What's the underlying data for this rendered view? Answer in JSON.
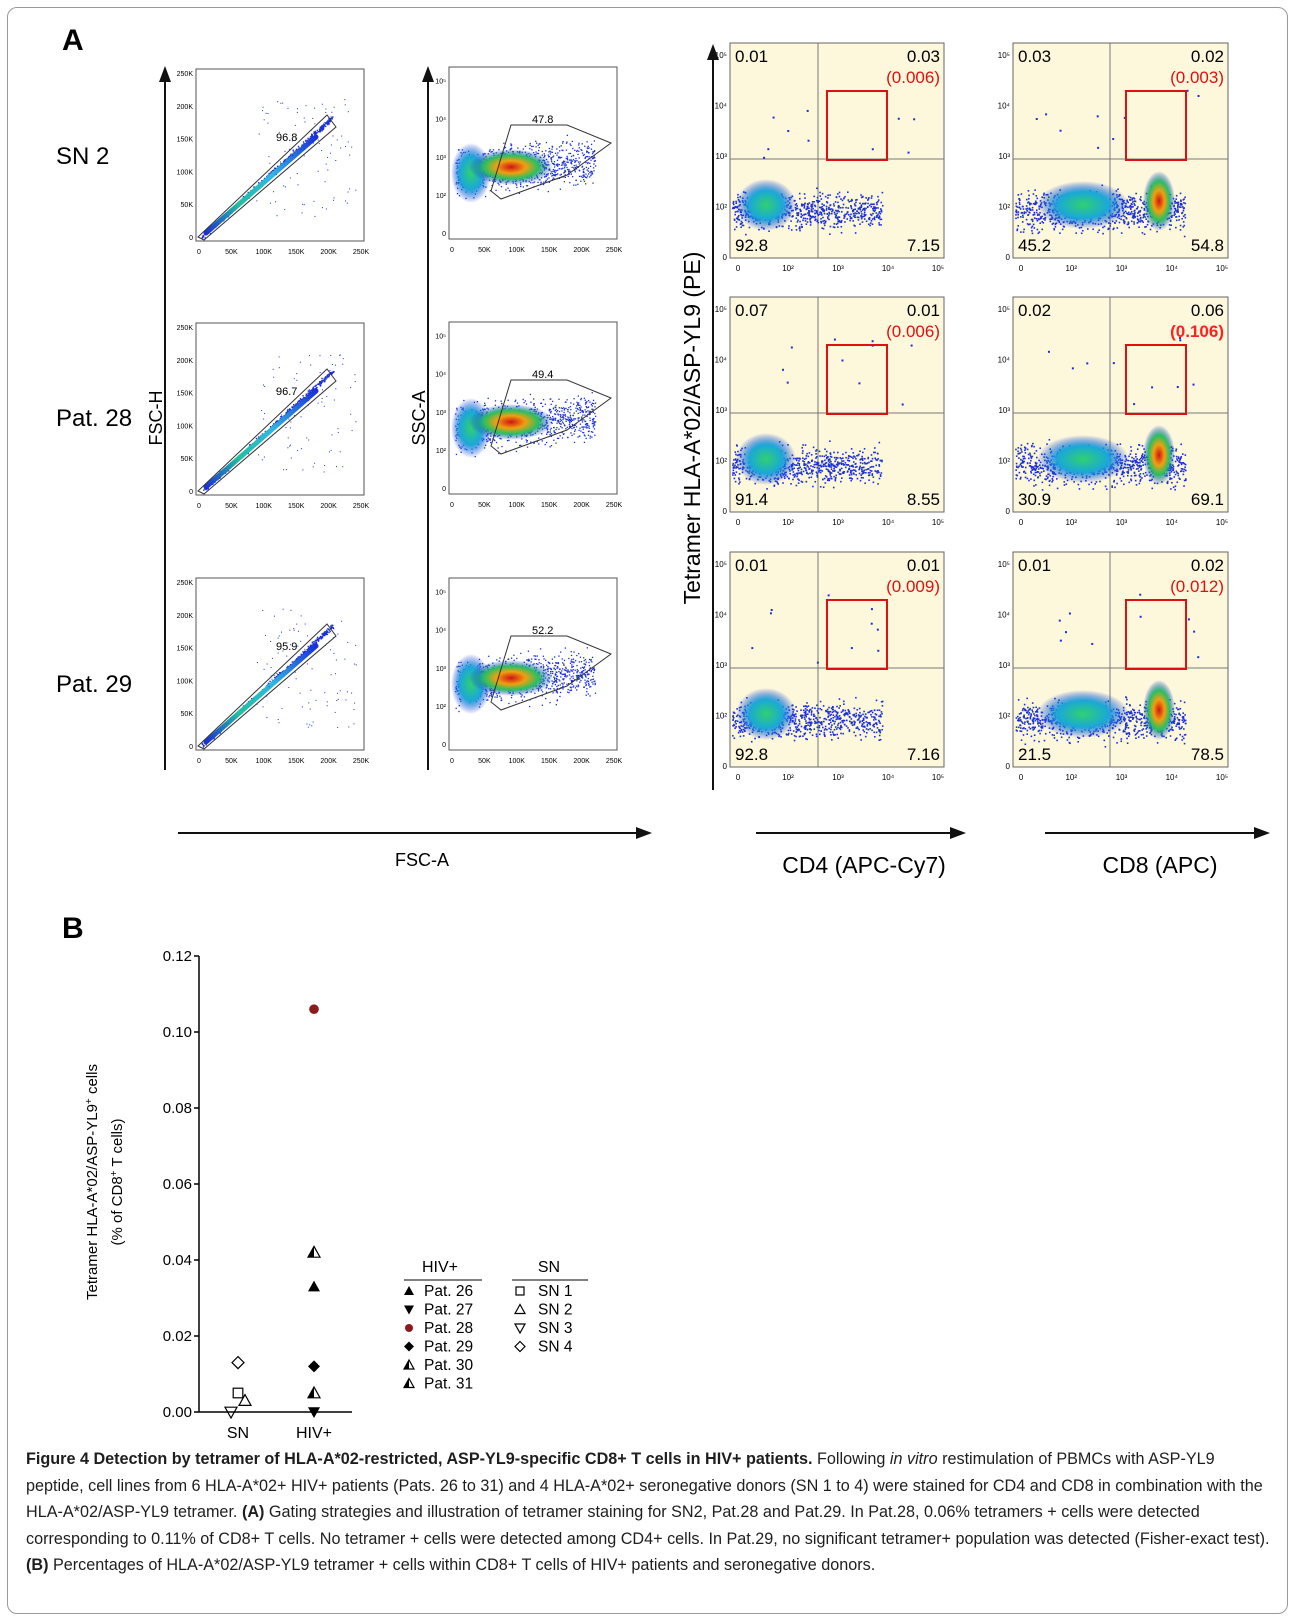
{
  "panel_a": {
    "label": "A",
    "row_labels": [
      "SN 2",
      "Pat. 28",
      "Pat. 29"
    ],
    "fsc_plot": {
      "ylabel": "FSC-H",
      "xlabel": "FSC-A",
      "x_ticks": [
        "0",
        "50K",
        "100K",
        "150K",
        "200K",
        "250K"
      ],
      "y_ticks": [
        "0",
        "50K",
        "100K",
        "150K",
        "200K",
        "250K"
      ],
      "gate_percent": [
        "96.8",
        "96.7",
        "95.9"
      ]
    },
    "ssc_plot": {
      "ylabel": "SSC-A",
      "x_ticks": [
        "0",
        "50K",
        "100K",
        "150K",
        "200K",
        "250K"
      ],
      "gate_percent": [
        "47.8",
        "49.4",
        "52.2"
      ]
    },
    "tetramer": {
      "ylabel": "Tetramer HLA-A*02/ASP-YL9 (PE)",
      "cd4_xlabel": "CD4 (APC-Cy7)",
      "cd8_xlabel": "CD8 (APC)",
      "cd4": [
        {
          "ul": "0.01",
          "ur": "0.03",
          "gate": "(0.006)",
          "ll": "92.8",
          "lr": "7.15"
        },
        {
          "ul": "0.07",
          "ur": "0.01",
          "gate": "(0.006)",
          "ll": "91.4",
          "lr": "8.55"
        },
        {
          "ul": "0.01",
          "ur": "0.01",
          "gate": "(0.009)",
          "ll": "92.8",
          "lr": "7.16"
        }
      ],
      "cd8": [
        {
          "ul": "0.03",
          "ur": "0.02",
          "gate": "(0.003)",
          "ll": "45.2",
          "lr": "54.8"
        },
        {
          "ul": "0.02",
          "ur": "0.06",
          "gate": "(0.106)",
          "ll": "30.9",
          "lr": "69.1"
        },
        {
          "ul": "0.01",
          "ur": "0.02",
          "gate": "(0.012)",
          "ll": "21.5",
          "lr": "78.5"
        }
      ]
    }
  },
  "panel_b": {
    "label": "B",
    "chart_data": {
      "type": "scatter",
      "categories": [
        "SN",
        "HIV+"
      ],
      "ylabel_line1": "Tetramer HLA-A*02/ASP-YL9",
      "ylabel_sup1": "+",
      "ylabel_tail1": " cells",
      "ylabel_line2": "(% of CD8",
      "ylabel_sup2": "+",
      "ylabel_tail2": " T cells)",
      "ylim": [
        0,
        0.12
      ],
      "y_ticks": [
        "0.00",
        "0.02",
        "0.04",
        "0.06",
        "0.08",
        "0.10",
        "0.12"
      ],
      "series": [
        {
          "name": "Pat. 26",
          "group": "HIV+",
          "marker": "triangle-up-filled",
          "value": 0.033,
          "color": "#000000"
        },
        {
          "name": "Pat. 27",
          "group": "HIV+",
          "marker": "triangle-down-filled",
          "value": 0.0,
          "color": "#000000"
        },
        {
          "name": "Pat. 28",
          "group": "HIV+",
          "marker": "circle-filled",
          "value": 0.106,
          "color": "#8b1a1a"
        },
        {
          "name": "Pat. 29",
          "group": "HIV+",
          "marker": "diamond-filled",
          "value": 0.012,
          "color": "#000000"
        },
        {
          "name": "Pat. 30",
          "group": "HIV+",
          "marker": "triangle-half",
          "value": 0.005,
          "color": "#000000"
        },
        {
          "name": "Pat. 31",
          "group": "HIV+",
          "marker": "triangle-half",
          "value": 0.042,
          "color": "#000000"
        },
        {
          "name": "SN 1",
          "group": "SN",
          "marker": "square-open",
          "value": 0.005,
          "color": "#000000"
        },
        {
          "name": "SN 2",
          "group": "SN",
          "marker": "triangle-up-open",
          "value": 0.003,
          "color": "#000000"
        },
        {
          "name": "SN 3",
          "group": "SN",
          "marker": "triangle-down-open",
          "value": 0.0,
          "color": "#000000"
        },
        {
          "name": "SN 4",
          "group": "SN",
          "marker": "diamond-open",
          "value": 0.013,
          "color": "#000000"
        }
      ],
      "legend": {
        "hiv_title": "HIV+",
        "sn_title": "SN",
        "placement": "right"
      }
    }
  },
  "caption": {
    "title": "Figure 4 Detection by tetramer of HLA-A*02-restricted, ASP-YL9-specific CD8+ T cells in HIV+ patients.",
    "t1": " Following ",
    "t1_italic": "in vitro",
    "t2": " restimulation of PBMCs with ASP-YL9 peptide, cell lines from 6 HLA-A*02+ HIV+ patients (Pats. 26 to 31) and 4 HLA-A*02+ seronegative donors (SN 1 to 4) were stained for CD4 and CD8 in combination with the HLA-A*02/ASP-YL9 tetramer. ",
    "a_label": "(A)",
    "t3": " Gating strategies and illustration of tetramer staining for SN2, Pat.28 and Pat.29. In Pat.28, 0.06% tetramers + cells were detected corresponding to 0.11% of CD8+ T cells. No tetramer + cells were detected among CD4+ cells. In Pat.29, no significant tetramer+ population was detected (Fisher-exact test). ",
    "b_label": "(B)",
    "t4": " Percentages of HLA-A*02/ASP-YL9 tetramer + cells within CD8+ T cells of HIV+ patients and seronegative donors."
  },
  "colors": {
    "plot_bg": "#fdf8dc",
    "gate_red": "#e01010",
    "highlight_red": "#ff2020",
    "dot_blue": "#1a30d8",
    "pat28_red": "#8b1a1a"
  }
}
